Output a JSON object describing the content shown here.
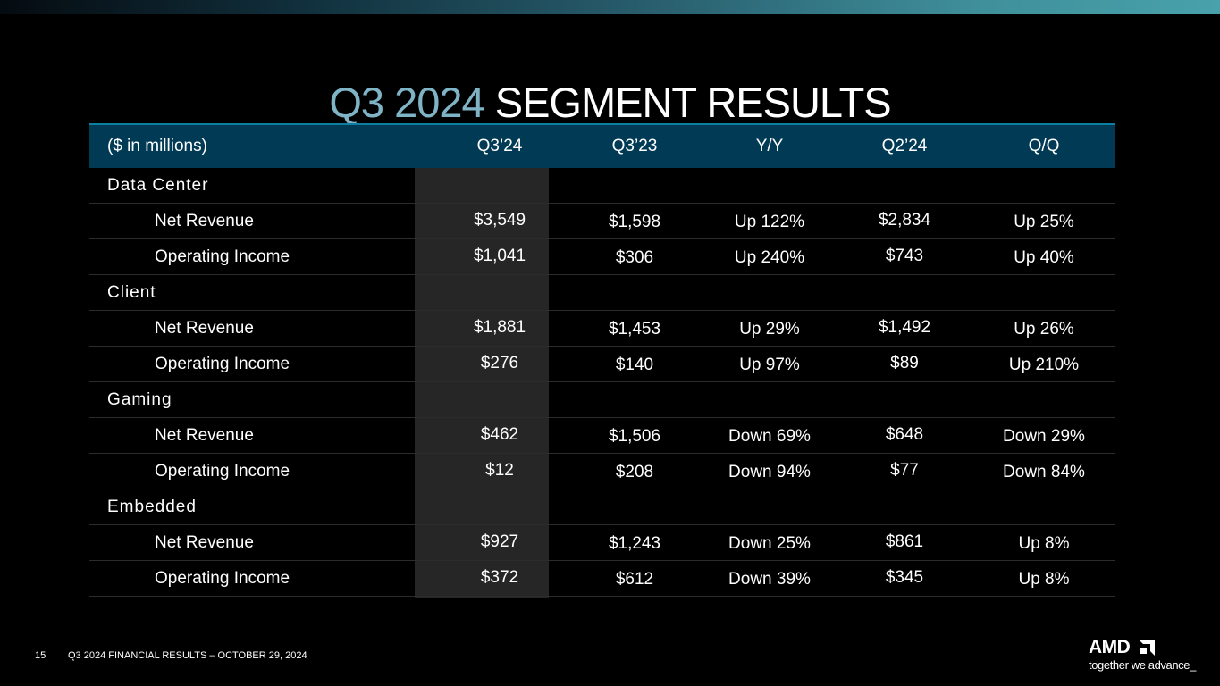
{
  "title": {
    "accent": "Q3 2024",
    "main": "SEGMENT RESULTS"
  },
  "table": {
    "headers": [
      "($ in millions)",
      "Q3’24",
      "Q3’23",
      "Y/Y",
      "Q2’24",
      "Q/Q"
    ],
    "segments": [
      {
        "name": "Data Center",
        "rows": [
          [
            "Net Revenue",
            "$3,549",
            "$1,598",
            "Up 122%",
            "$2,834",
            "Up 25%"
          ],
          [
            "Operating Income",
            "$1,041",
            "$306",
            "Up 240%",
            "$743",
            "Up 40%"
          ]
        ]
      },
      {
        "name": "Client",
        "rows": [
          [
            "Net Revenue",
            "$1,881",
            "$1,453",
            "Up 29%",
            "$1,492",
            "Up 26%"
          ],
          [
            "Operating Income",
            "$276",
            "$140",
            "Up 97%",
            "$89",
            "Up 210%"
          ]
        ]
      },
      {
        "name": "Gaming",
        "rows": [
          [
            "Net Revenue",
            "$462",
            "$1,506",
            "Down 69%",
            "$648",
            "Down 29%"
          ],
          [
            "Operating Income",
            "$12",
            "$208",
            "Down 94%",
            "$77",
            "Down 84%"
          ]
        ]
      },
      {
        "name": "Embedded",
        "rows": [
          [
            "Net Revenue",
            "$927",
            "$1,243",
            "Down 25%",
            "$861",
            "Up 8%"
          ],
          [
            "Operating Income",
            "$372",
            "$612",
            "Down 39%",
            "$345",
            "Up 8%"
          ]
        ]
      }
    ]
  },
  "footer": {
    "page_number": "15",
    "text": "Q3 2024 FINANCIAL RESULTS – OCTOBER 29, 2024"
  },
  "logo": {
    "word": "AMD",
    "tagline": "together we advance_",
    "mark_icon": "amd-arrow-icon"
  },
  "colors": {
    "title_accent": "#7fb4c6",
    "header_bg": "#003a55",
    "highlight_column": "#262626",
    "top_bar_end": "#48a2ab"
  }
}
